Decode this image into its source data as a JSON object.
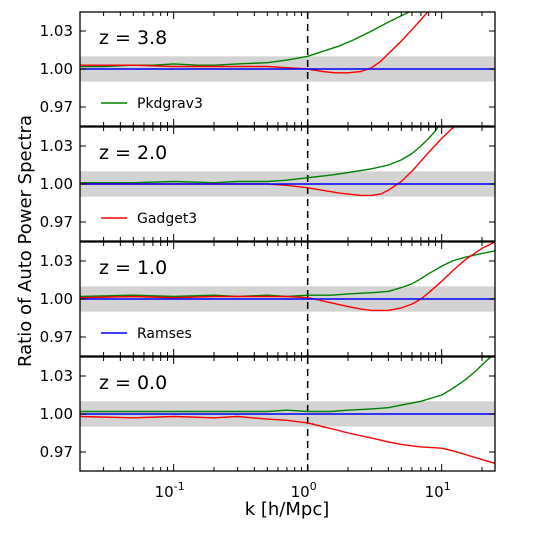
{
  "chart_data": {
    "type": "line",
    "xlabel": "k [h/Mpc]",
    "ylabel": "Ratio of Auto Power Spectra",
    "xscale": "log",
    "xlim": [
      0.02,
      25
    ],
    "ylim": [
      0.955,
      1.045
    ],
    "x_ticks": [
      {
        "value": 0.1,
        "base": "10",
        "exp": "-1"
      },
      {
        "value": 1,
        "base": "10",
        "exp": "0"
      },
      {
        "value": 10,
        "base": "10",
        "exp": "1"
      }
    ],
    "y_ticks": [
      "0.97",
      "1.00",
      "1.03"
    ],
    "y_tick_values": [
      0.97,
      1.0,
      1.03
    ],
    "reference_line_x": 1.0,
    "shaded_band": [
      0.99,
      1.01
    ],
    "colors": {
      "Pkdgrav3": "#008000",
      "Gadget3": "#ff0000",
      "Ramses": "#0000ff",
      "band": "#d3d3d3"
    },
    "panels": [
      {
        "label": "z = 3.8",
        "legend_entry": "Pkdgrav3",
        "legend_color": "#008000",
        "series": [
          {
            "name": "Pkdgrav3",
            "color": "#008000",
            "x": [
              0.02,
              0.03,
              0.05,
              0.07,
              0.1,
              0.15,
              0.2,
              0.3,
              0.5,
              0.7,
              1.0,
              1.3,
              1.7,
              2.2,
              3.0,
              4.0,
              5.0,
              6.0,
              7.0
            ],
            "y": [
              1.002,
              1.002,
              1.003,
              1.003,
              1.004,
              1.003,
              1.003,
              1.004,
              1.005,
              1.007,
              1.01,
              1.014,
              1.018,
              1.023,
              1.03,
              1.037,
              1.042,
              1.046,
              1.05
            ]
          },
          {
            "name": "Gadget3",
            "color": "#ff0000",
            "x": [
              0.02,
              0.05,
              0.1,
              0.2,
              0.3,
              0.5,
              0.7,
              1.0,
              1.3,
              1.6,
              2.0,
              2.5,
              3.0,
              3.5,
              4.0,
              5.0,
              6.0,
              7.0,
              8.0,
              9.0
            ],
            "y": [
              1.003,
              1.003,
              1.002,
              1.002,
              1.002,
              1.002,
              1.001,
              1.0,
              0.998,
              0.997,
              0.997,
              0.998,
              1.001,
              1.006,
              1.012,
              1.022,
              1.031,
              1.039,
              1.046,
              1.052
            ]
          },
          {
            "name": "Ramses",
            "color": "#0000ff",
            "x": [
              0.02,
              25
            ],
            "y": [
              1.0,
              1.0
            ]
          }
        ]
      },
      {
        "label": "z = 2.0",
        "legend_entry": "Gadget3",
        "legend_color": "#ff0000",
        "series": [
          {
            "name": "Pkdgrav3",
            "color": "#008000",
            "x": [
              0.02,
              0.05,
              0.1,
              0.2,
              0.3,
              0.5,
              0.7,
              1.0,
              1.5,
              2.0,
              3.0,
              4.0,
              5.0,
              6.0,
              7.0,
              8.0,
              9.0,
              10.0
            ],
            "y": [
              1.001,
              1.001,
              1.002,
              1.001,
              1.002,
              1.002,
              1.003,
              1.005,
              1.007,
              1.009,
              1.012,
              1.015,
              1.019,
              1.024,
              1.03,
              1.036,
              1.042,
              1.05
            ]
          },
          {
            "name": "Gadget3",
            "color": "#ff0000",
            "x": [
              0.02,
              0.05,
              0.1,
              0.2,
              0.3,
              0.5,
              0.7,
              1.0,
              1.3,
              1.7,
              2.0,
              2.5,
              3.0,
              3.5,
              4.0,
              5.0,
              6.0,
              7.0,
              8.0,
              10.0,
              12.0,
              14.0
            ],
            "y": [
              1.0,
              1.0,
              1.0,
              1.0,
              1.0,
              1.0,
              0.999,
              0.997,
              0.995,
              0.993,
              0.992,
              0.991,
              0.991,
              0.992,
              0.995,
              1.002,
              1.01,
              1.018,
              1.025,
              1.036,
              1.044,
              1.05
            ]
          },
          {
            "name": "Ramses",
            "color": "#0000ff",
            "x": [
              0.02,
              25
            ],
            "y": [
              1.0,
              1.0
            ]
          }
        ]
      },
      {
        "label": "z = 1.0",
        "legend_entry": "Ramses",
        "legend_color": "#0000ff",
        "series": [
          {
            "name": "Pkdgrav3",
            "color": "#008000",
            "x": [
              0.02,
              0.05,
              0.1,
              0.2,
              0.3,
              0.5,
              0.7,
              1.0,
              1.5,
              2.0,
              3.0,
              4.0,
              5.0,
              6.0,
              7.0,
              8.0,
              10.0,
              12.0,
              15.0,
              20.0,
              25.0
            ],
            "y": [
              1.002,
              1.003,
              1.002,
              1.003,
              1.002,
              1.003,
              1.002,
              1.003,
              1.003,
              1.004,
              1.005,
              1.006,
              1.009,
              1.012,
              1.016,
              1.02,
              1.026,
              1.03,
              1.033,
              1.036,
              1.038
            ]
          },
          {
            "name": "Gadget3",
            "color": "#ff0000",
            "x": [
              0.02,
              0.05,
              0.1,
              0.2,
              0.3,
              0.5,
              0.7,
              1.0,
              1.5,
              2.0,
              2.5,
              3.0,
              3.5,
              4.0,
              5.0,
              6.0,
              7.0,
              8.0,
              10.0,
              12.0,
              15.0,
              20.0,
              25.0
            ],
            "y": [
              1.001,
              1.002,
              1.001,
              1.002,
              1.002,
              1.002,
              1.002,
              1.001,
              0.997,
              0.994,
              0.992,
              0.991,
              0.991,
              0.991,
              0.993,
              0.996,
              1.0,
              1.005,
              1.014,
              1.022,
              1.031,
              1.04,
              1.045
            ]
          },
          {
            "name": "Ramses",
            "color": "#0000ff",
            "x": [
              0.02,
              25
            ],
            "y": [
              1.0,
              1.0
            ]
          }
        ]
      },
      {
        "label": "z = 0.0",
        "legend_entry": "",
        "legend_color": "",
        "series": [
          {
            "name": "Pkdgrav3",
            "color": "#008000",
            "x": [
              0.02,
              0.05,
              0.1,
              0.2,
              0.3,
              0.5,
              0.7,
              1.0,
              1.5,
              2.0,
              3.0,
              4.0,
              5.0,
              7.0,
              10.0,
              12.0,
              15.0,
              18.0,
              21.0,
              25.0
            ],
            "y": [
              1.002,
              1.002,
              1.002,
              1.002,
              1.002,
              1.002,
              1.003,
              1.002,
              1.002,
              1.003,
              1.004,
              1.005,
              1.007,
              1.01,
              1.015,
              1.02,
              1.027,
              1.034,
              1.041,
              1.048
            ]
          },
          {
            "name": "Gadget3",
            "color": "#ff0000",
            "x": [
              0.02,
              0.05,
              0.1,
              0.2,
              0.3,
              0.5,
              0.7,
              1.0,
              1.3,
              1.7,
              2.0,
              3.0,
              4.0,
              5.0,
              7.0,
              10.0,
              12.0,
              15.0,
              20.0,
              25.0
            ],
            "y": [
              0.998,
              0.997,
              0.998,
              0.997,
              0.998,
              0.996,
              0.995,
              0.993,
              0.99,
              0.987,
              0.985,
              0.981,
              0.978,
              0.976,
              0.974,
              0.973,
              0.971,
              0.968,
              0.964,
              0.961
            ]
          },
          {
            "name": "Ramses",
            "color": "#0000ff",
            "x": [
              0.02,
              25
            ],
            "y": [
              1.0,
              1.0
            ]
          }
        ]
      }
    ]
  }
}
